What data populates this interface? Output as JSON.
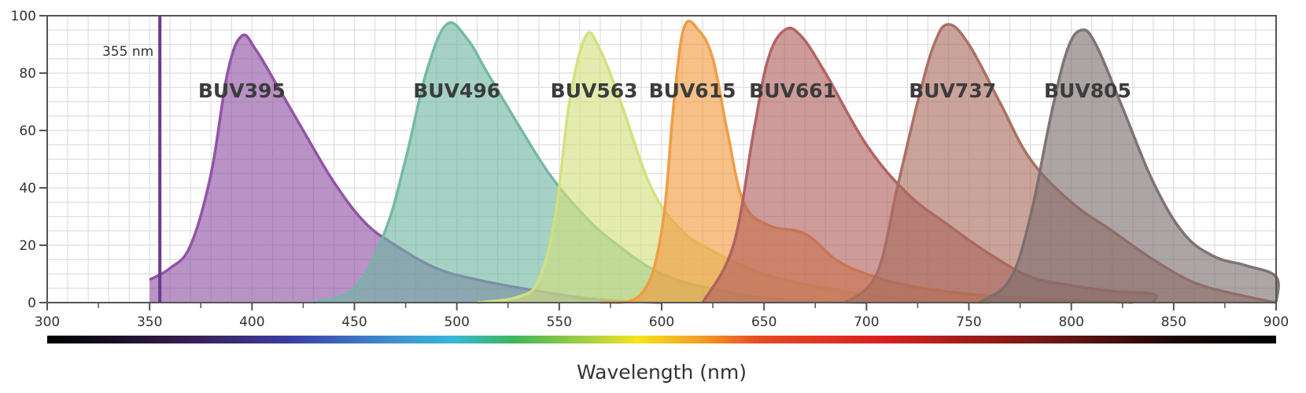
{
  "chart_data": {
    "type": "area",
    "xlabel": "Wavelength (nm)",
    "ylabel": "",
    "xlim": [
      300,
      900
    ],
    "ylim": [
      0,
      100
    ],
    "x_ticks": [
      300,
      350,
      400,
      450,
      500,
      550,
      600,
      650,
      700,
      750,
      800,
      850,
      900
    ],
    "y_ticks": [
      0,
      20,
      40,
      60,
      80,
      100
    ],
    "grid": true,
    "spectrum_bar": true,
    "laser_line": {
      "x": 355,
      "label": "355 nm",
      "color": "#6b3a8e"
    },
    "series": [
      {
        "name": "BUV395",
        "color": "#8e4fa3",
        "label_x": 395,
        "label_y": 74,
        "points": [
          [
            350,
            8
          ],
          [
            360,
            12
          ],
          [
            370,
            20
          ],
          [
            380,
            45
          ],
          [
            388,
            80
          ],
          [
            395,
            93
          ],
          [
            402,
            88
          ],
          [
            412,
            76
          ],
          [
            425,
            60
          ],
          [
            440,
            42
          ],
          [
            455,
            28
          ],
          [
            470,
            20
          ],
          [
            490,
            12
          ],
          [
            510,
            8
          ],
          [
            540,
            4
          ],
          [
            570,
            1
          ],
          [
            600,
            0
          ]
        ]
      },
      {
        "name": "BUV496",
        "color": "#6fb7a3",
        "label_x": 500,
        "label_y": 74,
        "points": [
          [
            430,
            0
          ],
          [
            450,
            5
          ],
          [
            465,
            25
          ],
          [
            475,
            50
          ],
          [
            485,
            80
          ],
          [
            495,
            97
          ],
          [
            505,
            92
          ],
          [
            515,
            80
          ],
          [
            530,
            62
          ],
          [
            545,
            45
          ],
          [
            560,
            32
          ],
          [
            575,
            22
          ],
          [
            600,
            10
          ],
          [
            630,
            4
          ],
          [
            660,
            1
          ],
          [
            700,
            0
          ]
        ]
      },
      {
        "name": "BUV563",
        "color": "#d3df7c",
        "label_x": 567,
        "label_y": 74,
        "points": [
          [
            510,
            0
          ],
          [
            530,
            2
          ],
          [
            540,
            8
          ],
          [
            548,
            30
          ],
          [
            555,
            70
          ],
          [
            563,
            93
          ],
          [
            570,
            88
          ],
          [
            580,
            70
          ],
          [
            595,
            40
          ],
          [
            610,
            25
          ],
          [
            625,
            18
          ],
          [
            650,
            10
          ],
          [
            680,
            5
          ],
          [
            720,
            1
          ],
          [
            760,
            0
          ]
        ]
      },
      {
        "name": "BUV615",
        "color": "#f09a3e",
        "label_x": 615,
        "label_y": 74,
        "points": [
          [
            570,
            0
          ],
          [
            590,
            3
          ],
          [
            600,
            25
          ],
          [
            606,
            70
          ],
          [
            611,
            96
          ],
          [
            618,
            95
          ],
          [
            625,
            85
          ],
          [
            632,
            60
          ],
          [
            640,
            35
          ],
          [
            652,
            27
          ],
          [
            670,
            24
          ],
          [
            685,
            15
          ],
          [
            700,
            10
          ],
          [
            720,
            6
          ],
          [
            750,
            3
          ],
          [
            790,
            1
          ],
          [
            830,
            0
          ]
        ]
      },
      {
        "name": "BUV661",
        "color": "#b05e5e",
        "label_x": 664,
        "label_y": 74,
        "points": [
          [
            620,
            0
          ],
          [
            635,
            20
          ],
          [
            645,
            60
          ],
          [
            652,
            85
          ],
          [
            660,
            95
          ],
          [
            668,
            93
          ],
          [
            680,
            80
          ],
          [
            700,
            55
          ],
          [
            720,
            38
          ],
          [
            740,
            27
          ],
          [
            760,
            17
          ],
          [
            780,
            9
          ],
          [
            800,
            6
          ],
          [
            820,
            4
          ],
          [
            840,
            3
          ],
          [
            840,
            0
          ]
        ]
      },
      {
        "name": "BUV737",
        "color": "#a96c5e",
        "label_x": 742,
        "label_y": 74,
        "points": [
          [
            690,
            0
          ],
          [
            705,
            10
          ],
          [
            715,
            40
          ],
          [
            725,
            70
          ],
          [
            733,
            90
          ],
          [
            740,
            97
          ],
          [
            750,
            90
          ],
          [
            765,
            70
          ],
          [
            780,
            50
          ],
          [
            800,
            35
          ],
          [
            820,
            25
          ],
          [
            840,
            15
          ],
          [
            860,
            7
          ],
          [
            880,
            3
          ],
          [
            900,
            0
          ]
        ]
      },
      {
        "name": "BUV805",
        "color": "#7a6e6e",
        "label_x": 808,
        "label_y": 74,
        "points": [
          [
            755,
            0
          ],
          [
            770,
            8
          ],
          [
            780,
            30
          ],
          [
            790,
            65
          ],
          [
            798,
            88
          ],
          [
            805,
            95
          ],
          [
            812,
            90
          ],
          [
            825,
            68
          ],
          [
            840,
            42
          ],
          [
            855,
            24
          ],
          [
            870,
            16
          ],
          [
            885,
            13
          ],
          [
            900,
            9
          ],
          [
            900,
            0
          ]
        ]
      }
    ]
  }
}
